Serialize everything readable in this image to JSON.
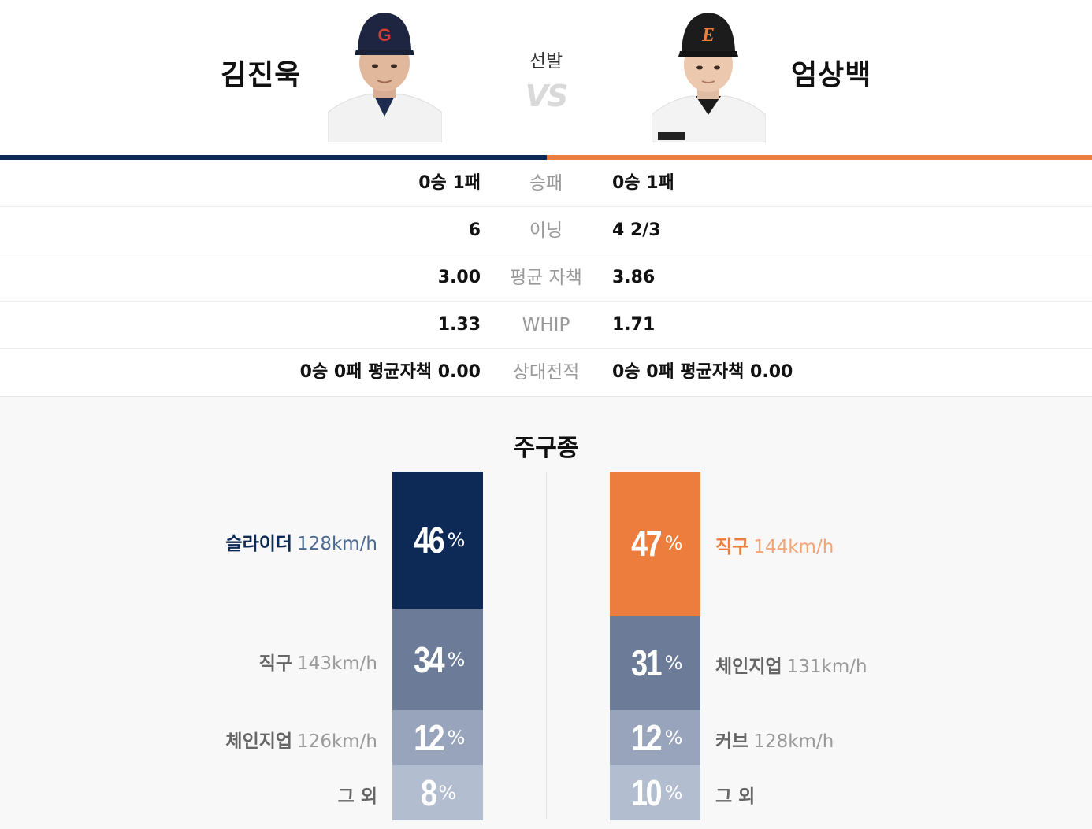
{
  "header": {
    "left_pitcher": "김진욱",
    "right_pitcher": "엄상백",
    "center_label": "선발",
    "vs": "VS"
  },
  "colors": {
    "left_team": "#0c2a55",
    "right_team": "#ec7d3c"
  },
  "stats": [
    {
      "label": "승패",
      "left": "0승 1패",
      "right": "0승 1패"
    },
    {
      "label": "이닝",
      "left": "6",
      "right": "4 2/3"
    },
    {
      "label": "평균 자책",
      "left": "3.00",
      "right": "3.86"
    },
    {
      "label": "WHIP",
      "left": "1.33",
      "right": "1.71"
    },
    {
      "label": "상대전적",
      "left": "0승 0패 평균자책 0.00",
      "right": "0승 0패 평균자책 0.00"
    }
  ],
  "pitch_mix": {
    "title": "주구종",
    "percent_sign": "%",
    "left": [
      {
        "name": "슬라이더",
        "speed": "128km/h",
        "pct": "46",
        "color": "#0c2a55",
        "name_color": "#0c2a55",
        "speed_color": "#4a6a92"
      },
      {
        "name": "직구",
        "speed": "143km/h",
        "pct": "34",
        "color": "#6c7b97",
        "name_color": "#666666",
        "speed_color": "#999999"
      },
      {
        "name": "체인지업",
        "speed": "126km/h",
        "pct": "12",
        "color": "#98a4bb",
        "name_color": "#666666",
        "speed_color": "#999999"
      },
      {
        "name": "그 외",
        "speed": "",
        "pct": "8",
        "color": "#b2bdd0",
        "name_color": "#666666",
        "speed_color": "#999999"
      }
    ],
    "right": [
      {
        "name": "직구",
        "speed": "144km/h",
        "pct": "47",
        "color": "#ec7d3c",
        "name_color": "#ec7d3c",
        "speed_color": "#f0a677"
      },
      {
        "name": "체인지업",
        "speed": "131km/h",
        "pct": "31",
        "color": "#6c7b97",
        "name_color": "#666666",
        "speed_color": "#999999"
      },
      {
        "name": "커브",
        "speed": "128km/h",
        "pct": "12",
        "color": "#98a4bb",
        "name_color": "#666666",
        "speed_color": "#999999"
      },
      {
        "name": "그 외",
        "speed": "",
        "pct": "10",
        "color": "#b2bdd0",
        "name_color": "#666666",
        "speed_color": "#999999"
      }
    ]
  }
}
